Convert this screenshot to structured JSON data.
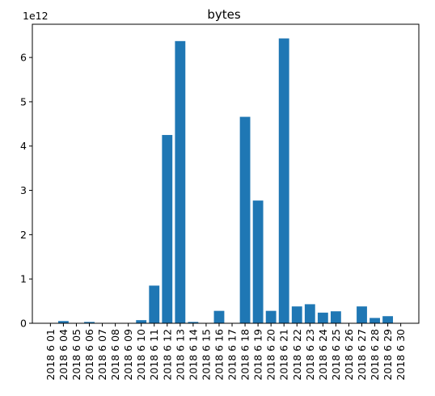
{
  "chart_data": {
    "type": "bar",
    "title": "bytes",
    "xlabel": "",
    "ylabel": "",
    "y_multiplier_label": "1e12",
    "categories": [
      "2018 6 01",
      "2018 6 04",
      "2018 6 05",
      "2018 6 06",
      "2018 6 07",
      "2018 6 08",
      "2018 6 09",
      "2018 6 10",
      "2018 6 11",
      "2018 6 12",
      "2018 6 13",
      "2018 6 14",
      "2018 6 15",
      "2018 6 16",
      "2018 6 17",
      "2018 6 18",
      "2018 6 19",
      "2018 6 20",
      "2018 6 21",
      "2018 6 22",
      "2018 6 23",
      "2018 6 24",
      "2018 6 25",
      "2018 6 26",
      "2018 6 27",
      "2018 6 28",
      "2018 6 29",
      "2018 6 30"
    ],
    "values": [
      0.0,
      0.05,
      0.0,
      0.03,
      0.0,
      0.0,
      0.0,
      0.07,
      0.85,
      4.25,
      6.37,
      0.03,
      0.0,
      0.28,
      0.0,
      4.66,
      2.77,
      0.28,
      6.43,
      0.38,
      0.43,
      0.24,
      0.27,
      0.0,
      0.38,
      0.12,
      0.16,
      0.0
    ],
    "y_unit_scale": 1000000000000.0,
    "ylim": [
      0,
      6.75
    ],
    "yticks": [
      0,
      1,
      2,
      3,
      4,
      5,
      6
    ],
    "ytick_labels": [
      "0",
      "1",
      "2",
      "3",
      "4",
      "5",
      "6"
    ],
    "grid": false,
    "colors": {
      "bar": "#1f77b4"
    }
  }
}
